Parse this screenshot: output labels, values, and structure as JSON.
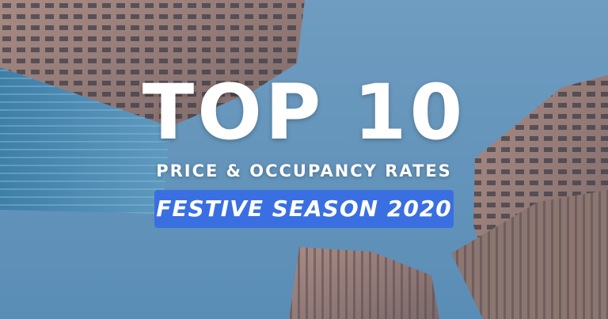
{
  "headline": "TOP 10",
  "subtitle": "PRICE & OCCUPANCY RATES",
  "badge": "FESTIVE SEASON 2020"
}
